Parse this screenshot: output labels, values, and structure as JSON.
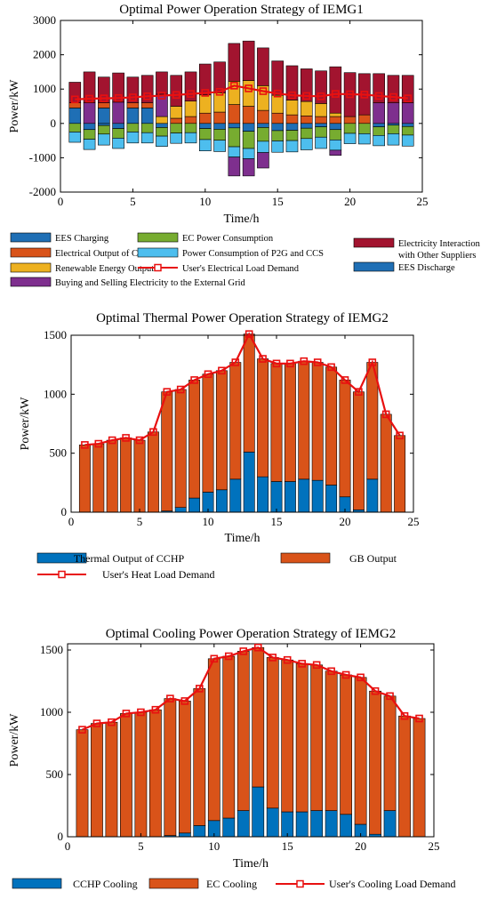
{
  "chart_data": [
    {
      "type": "bar",
      "stacked": true,
      "title": "Optimal Power Operation Strategy of IEMG1",
      "xlabel": "Time/h",
      "ylabel": "Power/kW",
      "xlim": [
        0,
        25
      ],
      "ylim": [
        -2000,
        3000
      ],
      "xticks": [
        "0",
        "5",
        "10",
        "15",
        "20",
        "25"
      ],
      "yticks": [
        "-2000",
        "-1000",
        "0",
        "1000",
        "2000",
        "3000"
      ],
      "x": [
        1,
        2,
        3,
        4,
        5,
        6,
        7,
        8,
        9,
        10,
        11,
        12,
        13,
        14,
        15,
        16,
        17,
        18,
        19,
        20,
        21,
        22,
        23,
        24
      ],
      "series": [
        {
          "name": "EES Discharge",
          "color": "#1f6fb5",
          "values": [
            450,
            0,
            450,
            0,
            450,
            450,
            0,
            0,
            0,
            0,
            0,
            0,
            0,
            0,
            0,
            0,
            0,
            0,
            0,
            0,
            0,
            0,
            0,
            0
          ]
        },
        {
          "name": "Electrical Output of CCHP",
          "color": "#d95319",
          "values": [
            150,
            0,
            150,
            0,
            150,
            150,
            0,
            150,
            200,
            300,
            330,
            550,
            500,
            380,
            300,
            250,
            220,
            200,
            200,
            200,
            250,
            0,
            0,
            0
          ]
        },
        {
          "name": "Renewable Energy Output",
          "color": "#edb120",
          "values": [
            0,
            0,
            0,
            0,
            0,
            0,
            200,
            350,
            450,
            530,
            560,
            680,
            750,
            720,
            520,
            430,
            420,
            380,
            100,
            0,
            0,
            0,
            0,
            0
          ]
        },
        {
          "name": "Buying and Selling Electricity to the External Grid",
          "color": "#7e2f8e",
          "values": [
            0,
            600,
            0,
            620,
            0,
            0,
            650,
            0,
            0,
            0,
            0,
            0,
            0,
            0,
            0,
            0,
            0,
            0,
            0,
            0,
            0,
            600,
            600,
            600
          ]
        },
        {
          "name": "Electricity Interaction with Other Suppliers",
          "color": "#a2142f",
          "values": [
            600,
            900,
            750,
            850,
            750,
            800,
            650,
            900,
            850,
            900,
            900,
            1100,
            1150,
            1100,
            1000,
            1000,
            950,
            950,
            1350,
            1280,
            1200,
            850,
            800,
            800
          ]
        },
        {
          "name": "EES Charging",
          "color": "#1f6fb5",
          "values": [
            0,
            -180,
            -60,
            -150,
            0,
            0,
            -120,
            0,
            0,
            -150,
            -170,
            -130,
            -230,
            -120,
            -210,
            -200,
            -140,
            -100,
            -180,
            0,
            0,
            -100,
            -50,
            -90
          ]
        },
        {
          "name": "EC Power Consumption",
          "color": "#77ac30",
          "values": [
            -250,
            -280,
            -250,
            -280,
            -250,
            -270,
            -250,
            -280,
            -270,
            -320,
            -320,
            -550,
            -500,
            -400,
            -300,
            -300,
            -300,
            -300,
            -300,
            -290,
            -300,
            -250,
            -250,
            -250
          ]
        },
        {
          "name": "Power Consumption of P2G and CCS",
          "color": "#4dbeee",
          "values": [
            -300,
            -300,
            -320,
            -300,
            -320,
            -300,
            -300,
            -300,
            -300,
            -330,
            -330,
            -300,
            -300,
            -330,
            -330,
            -330,
            -330,
            -330,
            -300,
            -300,
            -300,
            -300,
            -330,
            -320
          ]
        },
        {
          "name": "Buying and Selling Electricity to the External Grid",
          "color": "#7e2f8e",
          "values": [
            0,
            0,
            0,
            0,
            0,
            0,
            0,
            0,
            0,
            0,
            0,
            -550,
            -500,
            -450,
            0,
            0,
            0,
            0,
            -150,
            0,
            0,
            0,
            0,
            0
          ]
        }
      ],
      "line": {
        "name": "User's Electrical Load Demand",
        "color": "#e81010",
        "values": [
          700,
          720,
          730,
          740,
          760,
          790,
          810,
          830,
          860,
          890,
          920,
          1100,
          1020,
          940,
          870,
          820,
          800,
          790,
          860,
          850,
          840,
          800,
          770,
          730
        ]
      },
      "legend": {
        "placement": "below",
        "items": [
          {
            "label": "EES Charging",
            "color": "#1f6fb5",
            "kind": "patch"
          },
          {
            "label": "EC Power Consumption",
            "color": "#77ac30",
            "kind": "patch"
          },
          {
            "label": "Electricity Interaction",
            "label2": "with Other Suppliers",
            "color": "#a2142f",
            "kind": "patch"
          },
          {
            "label": "Electrical Output of CCHP",
            "color": "#d95319",
            "kind": "patch"
          },
          {
            "label": "Power Consumption of P2G and CCS",
            "color": "#4dbeee",
            "kind": "patch"
          },
          {
            "label": "Renewable Energy Output",
            "color": "#edb120",
            "kind": "patch"
          },
          {
            "label": "User's Electrical Load Demand",
            "color": "#e81010",
            "kind": "line"
          },
          {
            "label": "EES Discharge",
            "color": "#1f6fb5",
            "kind": "patch"
          },
          {
            "label": "Buying and Selling Electricity to the External Grid",
            "color": "#7e2f8e",
            "kind": "patch"
          }
        ]
      }
    },
    {
      "type": "bar",
      "stacked": true,
      "title": "Optimal Thermal Power Operation Strategy of IEMG2",
      "xlabel": "Time/h",
      "ylabel": "Power/kW",
      "xlim": [
        0,
        25
      ],
      "ylim": [
        0,
        1500
      ],
      "xticks": [
        "0",
        "5",
        "10",
        "15",
        "20",
        "25"
      ],
      "yticks": [
        "0",
        "500",
        "1000",
        "1500"
      ],
      "x": [
        1,
        2,
        3,
        4,
        5,
        6,
        7,
        8,
        9,
        10,
        11,
        12,
        13,
        14,
        15,
        16,
        17,
        18,
        19,
        20,
        21,
        22,
        23,
        24
      ],
      "series": [
        {
          "name": "Thermal Output of CCHP",
          "color": "#0072bd",
          "values": [
            0,
            0,
            0,
            0,
            0,
            0,
            10,
            40,
            120,
            170,
            190,
            280,
            510,
            300,
            260,
            260,
            280,
            270,
            230,
            130,
            20,
            280,
            0,
            0
          ]
        },
        {
          "name": "GB Output",
          "color": "#d95319",
          "values": [
            570,
            580,
            610,
            630,
            610,
            680,
            1010,
            1000,
            1000,
            1000,
            1010,
            990,
            1000,
            1000,
            1000,
            1000,
            1000,
            1000,
            1000,
            990,
            1000,
            990,
            830,
            650
          ]
        }
      ],
      "line": {
        "name": "User's Heat Load Demand",
        "color": "#e81010",
        "values": [
          570,
          580,
          610,
          630,
          610,
          680,
          1020,
          1040,
          1120,
          1170,
          1200,
          1270,
          1510,
          1300,
          1260,
          1260,
          1280,
          1270,
          1230,
          1120,
          1020,
          1270,
          830,
          650
        ]
      },
      "legend": {
        "placement": "below",
        "items": [
          {
            "label": "Thermal Output of CCHP",
            "color": "#0072bd",
            "kind": "patch"
          },
          {
            "label": "GB Output",
            "color": "#d95319",
            "kind": "patch"
          },
          {
            "label": "User's Heat Load Demand",
            "color": "#e81010",
            "kind": "line"
          }
        ]
      }
    },
    {
      "type": "bar",
      "stacked": true,
      "title": "Optimal Cooling Power Operation Strategy of IEMG2",
      "xlabel": "Time/h",
      "ylabel": "Power/kW",
      "xlim": [
        0,
        25
      ],
      "ylim": [
        0,
        1550
      ],
      "xticks": [
        "0",
        "5",
        "10",
        "15",
        "20",
        "25"
      ],
      "yticks": [
        "0",
        "500",
        "1000",
        "1500"
      ],
      "x": [
        1,
        2,
        3,
        4,
        5,
        6,
        7,
        8,
        9,
        10,
        11,
        12,
        13,
        14,
        15,
        16,
        17,
        18,
        19,
        20,
        21,
        22,
        23,
        24
      ],
      "series": [
        {
          "name": "CCHP Cooling",
          "color": "#0072bd",
          "values": [
            0,
            0,
            0,
            0,
            0,
            0,
            10,
            30,
            90,
            130,
            150,
            210,
            400,
            230,
            200,
            200,
            210,
            210,
            180,
            100,
            20,
            210,
            0,
            0
          ]
        },
        {
          "name": "EC Cooling",
          "color": "#d95319",
          "values": [
            860,
            910,
            920,
            990,
            1000,
            1020,
            1100,
            1060,
            1100,
            1300,
            1300,
            1280,
            1120,
            1210,
            1220,
            1190,
            1170,
            1120,
            1120,
            1180,
            1150,
            920,
            970,
            950
          ]
        }
      ],
      "line": {
        "name": "User's Cooling Load Demand",
        "color": "#e81010",
        "values": [
          860,
          910,
          920,
          990,
          1000,
          1020,
          1110,
          1090,
          1190,
          1430,
          1450,
          1490,
          1520,
          1440,
          1420,
          1390,
          1380,
          1330,
          1300,
          1280,
          1170,
          1130,
          970,
          950
        ]
      },
      "legend": {
        "placement": "below",
        "items": [
          {
            "label": "CCHP Cooling",
            "color": "#0072bd",
            "kind": "patch"
          },
          {
            "label": "EC Cooling",
            "color": "#d95319",
            "kind": "patch"
          },
          {
            "label": "User's Cooling Load Demand",
            "color": "#e81010",
            "kind": "line"
          }
        ]
      }
    }
  ]
}
